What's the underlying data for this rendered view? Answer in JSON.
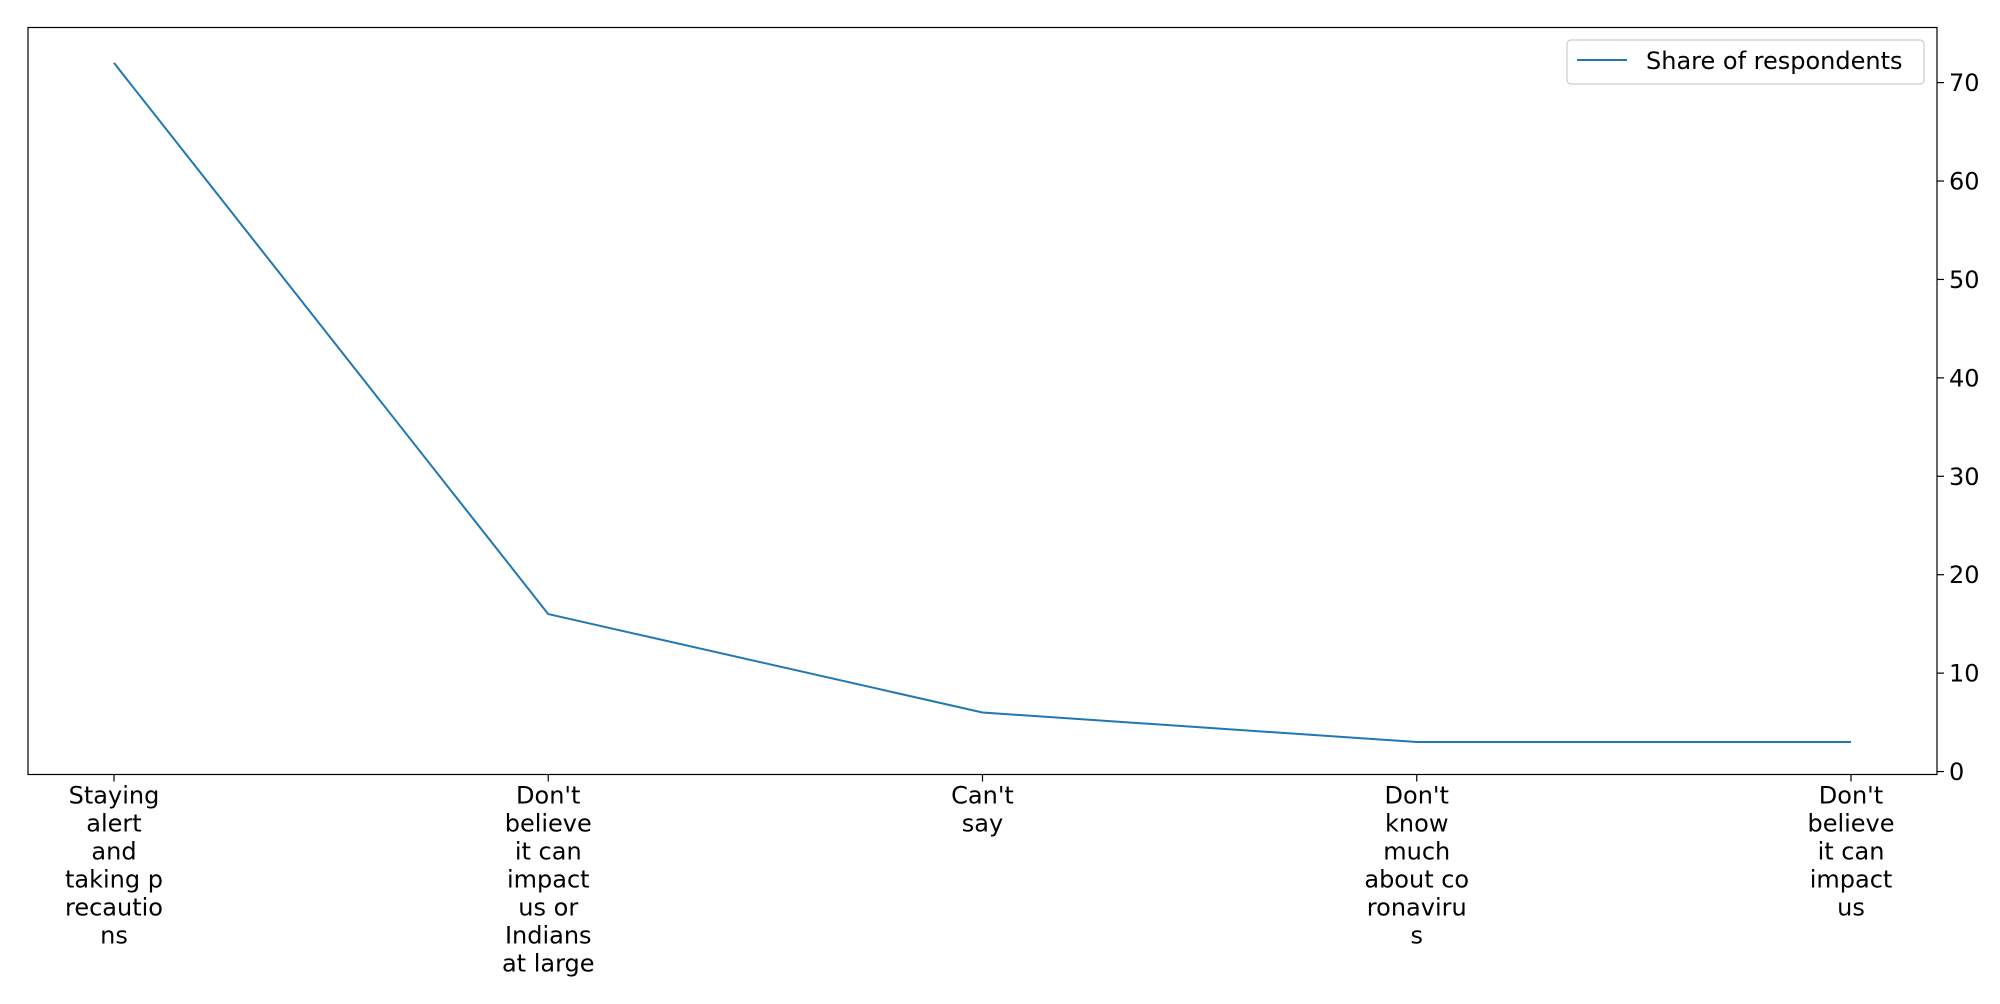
{
  "chart_data": {
    "type": "line",
    "title": "",
    "xlabel": "",
    "ylabel": "",
    "categories": [
      [
        "Staying",
        "alert",
        "and",
        "taking p",
        "recautio",
        "ns"
      ],
      [
        "Don't",
        "believe",
        "it can",
        "impact",
        "us or",
        "Indians",
        "at large"
      ],
      [
        "Can't",
        "say"
      ],
      [
        "Don't",
        "know",
        "much",
        "about co",
        "ronaviru",
        "s"
      ],
      [
        "Don't",
        "believe",
        "it can",
        "impact",
        "us"
      ]
    ],
    "series": [
      {
        "name": "Share of respondents",
        "values": [
          72,
          16,
          6,
          3,
          3
        ],
        "color": "#1f77b4"
      }
    ],
    "ylim": [
      -0.3,
      75.6
    ],
    "yticks": [
      0,
      10,
      20,
      30,
      40,
      50,
      60,
      70
    ],
    "y_axis_side": "right",
    "legend_position": "top-right",
    "grid": false
  }
}
